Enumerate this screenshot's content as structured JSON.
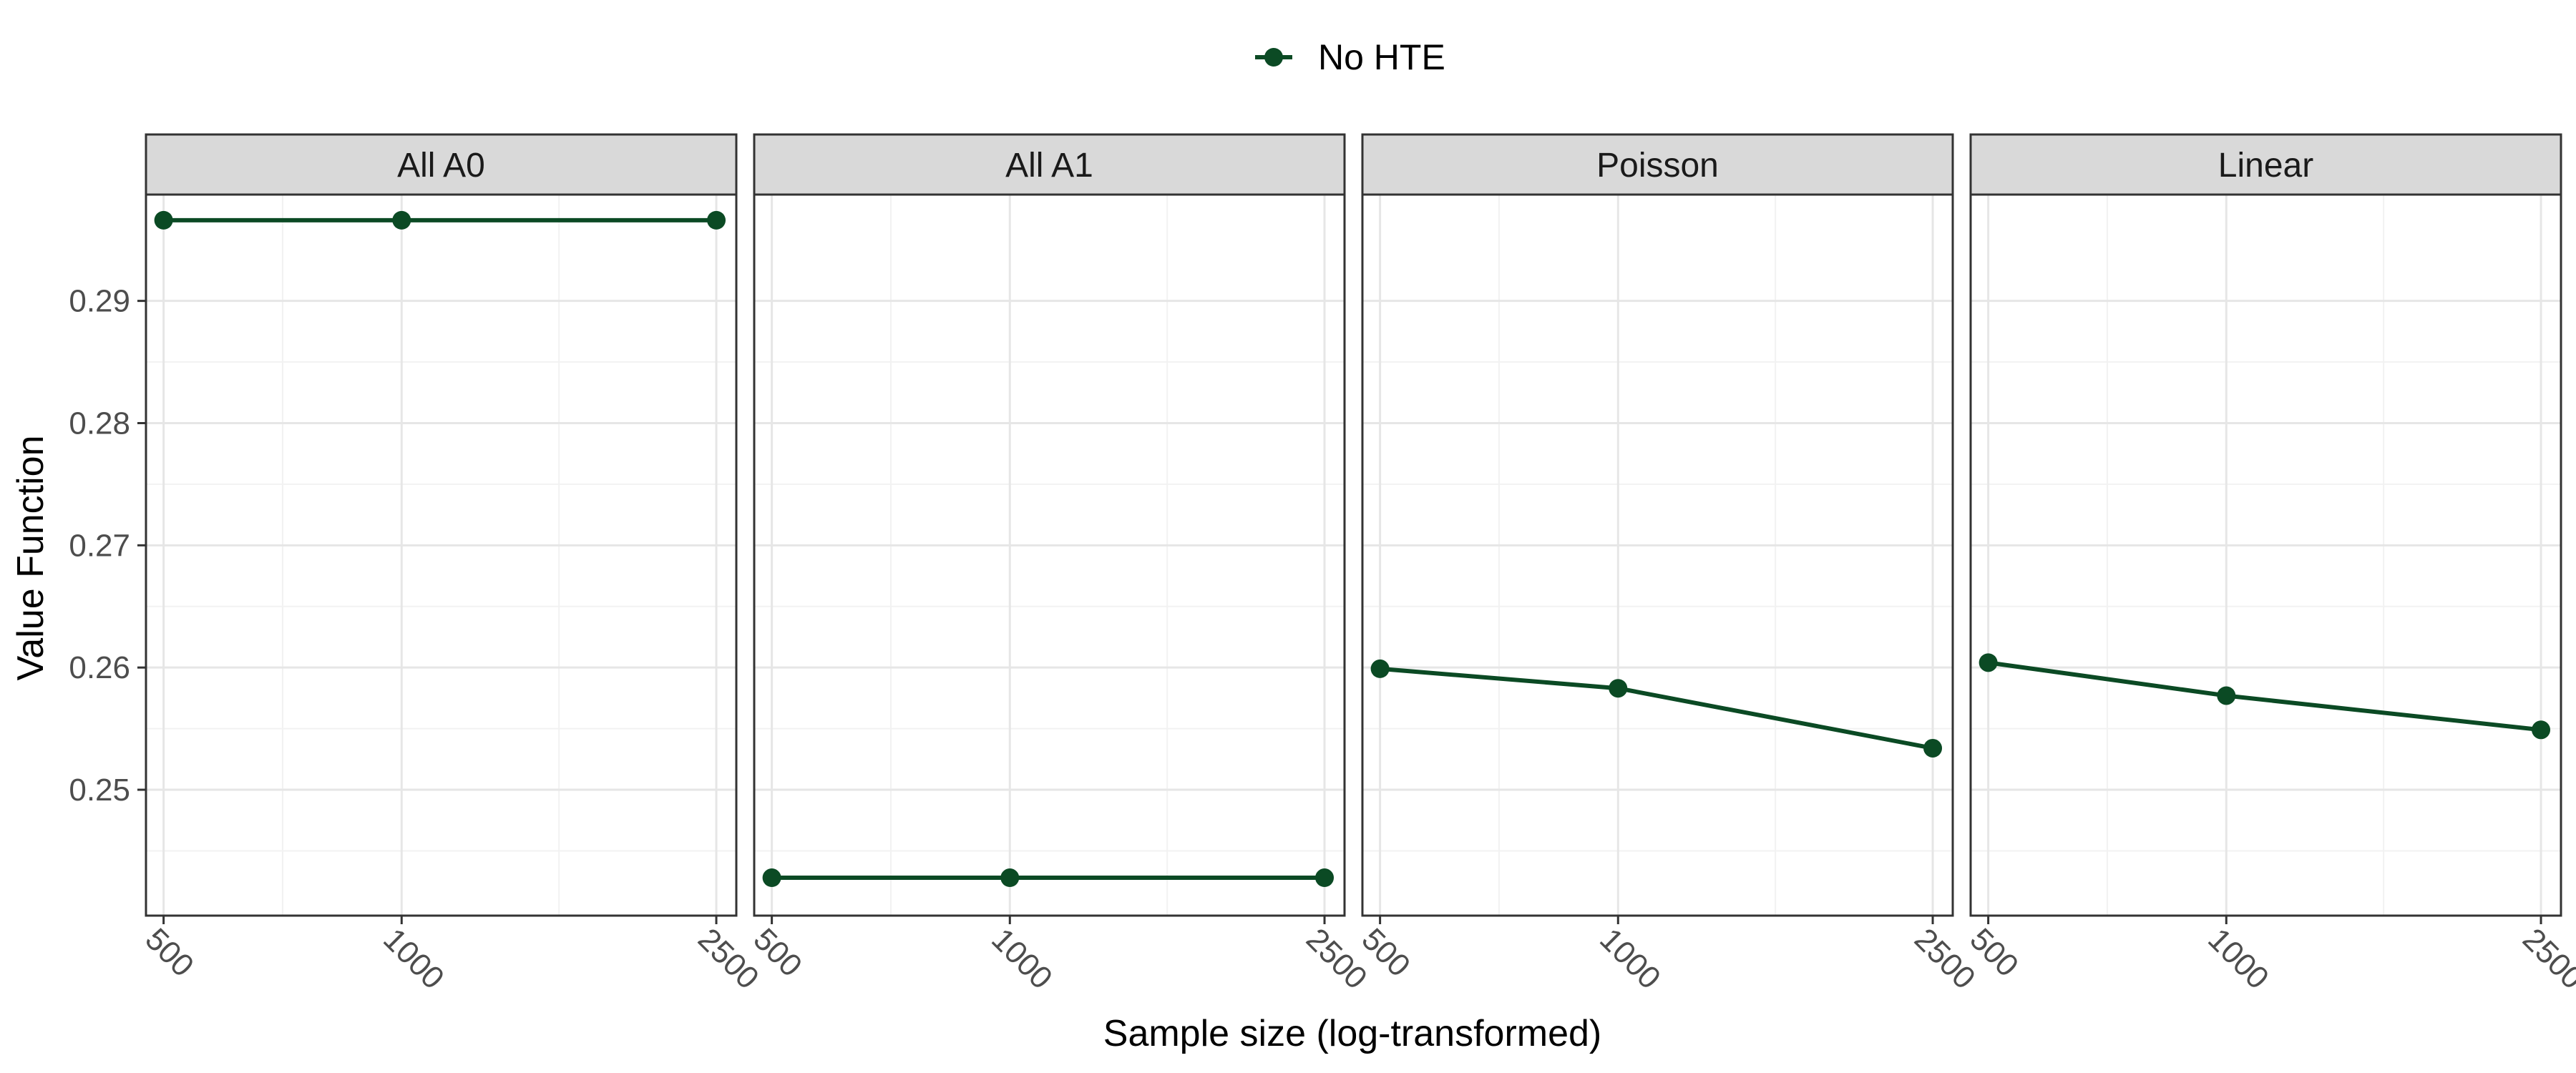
{
  "chart_data": {
    "type": "line",
    "xlabel": "Sample size (log-transformed)",
    "ylabel": "Value Function",
    "x_scale": "log",
    "x_ticks": [
      500,
      1000,
      2500
    ],
    "x_tick_labels": [
      "500",
      "1000",
      "2500"
    ],
    "xlim": [
      475,
      2650
    ],
    "y_ticks": [
      0.25,
      0.26,
      0.27,
      0.28,
      0.29
    ],
    "y_tick_labels": [
      "0.25",
      "0.26",
      "0.27",
      "0.28",
      "0.29"
    ],
    "ylim": [
      0.2397,
      0.2987
    ],
    "grid": true,
    "legend_position": "top",
    "series_color": "#0b4a24",
    "legend": [
      {
        "name": "No HTE",
        "color": "#0b4a24"
      }
    ],
    "panels": [
      {
        "title": "All A0",
        "series": [
          {
            "name": "No HTE",
            "x": [
              500,
              1000,
              2500
            ],
            "y": [
              0.2966,
              0.2966,
              0.2966
            ]
          }
        ]
      },
      {
        "title": "All A1",
        "series": [
          {
            "name": "No HTE",
            "x": [
              500,
              1000,
              2500
            ],
            "y": [
              0.2428,
              0.2428,
              0.2428
            ]
          }
        ]
      },
      {
        "title": "Poisson",
        "series": [
          {
            "name": "No HTE",
            "x": [
              500,
              1000,
              2500
            ],
            "y": [
              0.2599,
              0.2583,
              0.2534
            ]
          }
        ]
      },
      {
        "title": "Linear",
        "series": [
          {
            "name": "No HTE",
            "x": [
              500,
              1000,
              2500
            ],
            "y": [
              0.2604,
              0.2577,
              0.2549
            ]
          }
        ]
      }
    ]
  }
}
